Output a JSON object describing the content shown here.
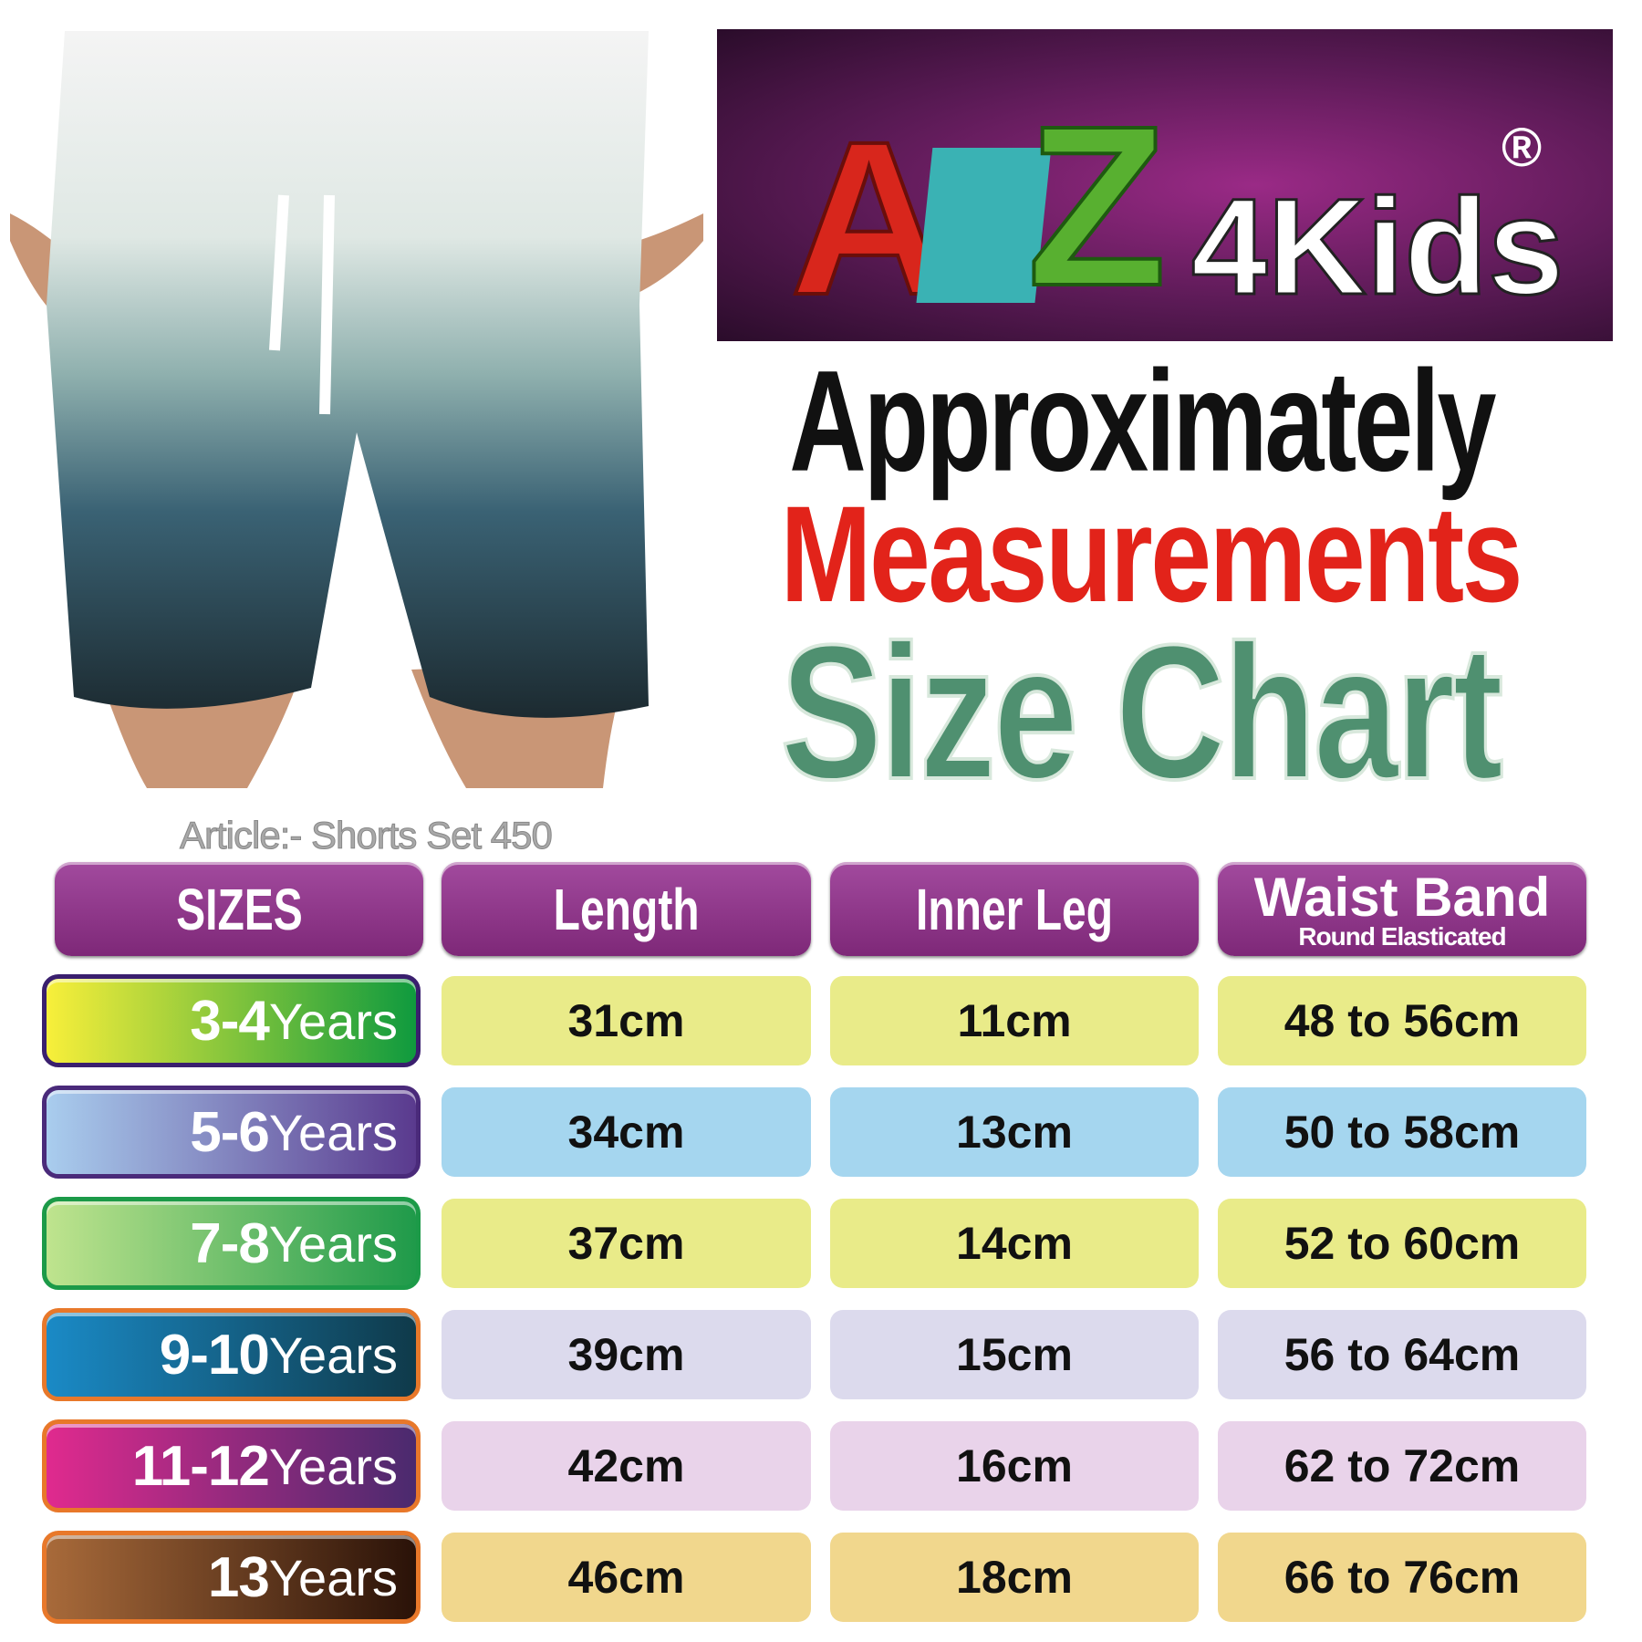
{
  "brand": {
    "name": "A2Z4Kids",
    "registered_mark": "®"
  },
  "headline": {
    "line1": "Approximately",
    "line2": "Measurements",
    "line3": "Size Chart"
  },
  "article": "Article:- Shorts Set 450",
  "table": {
    "headers": [
      {
        "label": "SIZES"
      },
      {
        "label": "Length"
      },
      {
        "label": "Inner Leg"
      },
      {
        "label": "Waist Band",
        "sub": "Round Elasticated"
      }
    ],
    "rows": [
      {
        "size_num": "3-4",
        "size_unit": "Years",
        "length": "31cm",
        "inner_leg": "11cm",
        "waist": "48 to 56cm",
        "cell_color": "#e9eb89",
        "label_gradient": [
          "#f8ef3a",
          "#0f9a3e"
        ],
        "border": "#3a1f6e"
      },
      {
        "size_num": "5-6",
        "size_unit": "Years",
        "length": "34cm",
        "inner_leg": "13cm",
        "waist": "50 to 58cm",
        "cell_color": "#a5d6ef",
        "label_gradient": [
          "#a9cdee",
          "#5a3a8e"
        ],
        "border": "#4a2a7a"
      },
      {
        "size_num": "7-8",
        "size_unit": "Years",
        "length": "37cm",
        "inner_leg": "14cm",
        "waist": "52 to 60cm",
        "cell_color": "#e9eb89",
        "label_gradient": [
          "#bfe48e",
          "#1f9a4a"
        ],
        "border": "#1c9a48"
      },
      {
        "size_num": "9-10",
        "size_unit": "Years",
        "length": "39cm",
        "inner_leg": "15cm",
        "waist": "56 to 64cm",
        "cell_color": "#dcdaed",
        "label_gradient": [
          "#1a8ac6",
          "#0f3a4a"
        ],
        "border": "#e8782a"
      },
      {
        "size_num": "11-12",
        "size_unit": "Years",
        "length": "42cm",
        "inner_leg": "16cm",
        "waist": "62 to 72cm",
        "cell_color": "#e9d3ea",
        "label_gradient": [
          "#e02a8e",
          "#4a2a6e"
        ],
        "border": "#e8782a"
      },
      {
        "size_num": "13",
        "size_unit": "Years",
        "length": "46cm",
        "inner_leg": "18cm",
        "waist": "66 to 76cm",
        "cell_color": "#f1d78d",
        "label_gradient": [
          "#a86a3a",
          "#2a1208"
        ],
        "border": "#e8782a"
      }
    ]
  },
  "colors": {
    "header_purple": "#8e3488",
    "headline_red": "#e2231a",
    "headline_green": "#4f9070"
  }
}
